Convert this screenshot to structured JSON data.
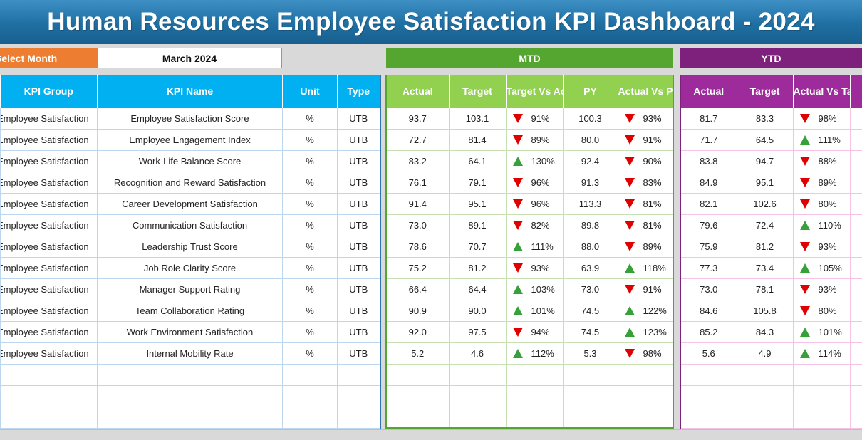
{
  "title": "Human Resources Employee Satisfaction KPI Dashboard - 2024",
  "select_month_label": "Select Month",
  "selected_month": "March 2024",
  "mtd_label": "MTD",
  "ytd_label": "YTD",
  "colors": {
    "title_bar": "#1f6fa3",
    "select_label": "#ed7d31",
    "left_header": "#00b0f0",
    "mtd_header": "#92d050",
    "mtd_band": "#55a630",
    "ytd_header": "#9e2b9c",
    "ytd_band": "#7e217d",
    "arrow_up": "#38a038",
    "arrow_down": "#e00000"
  },
  "left_headers": [
    "KPI Group",
    "KPI Name",
    "Unit",
    "Type"
  ],
  "mtd_headers": [
    "Actual",
    "Target",
    "Target Vs Actual",
    "PY",
    "Actual Vs PY"
  ],
  "ytd_headers": [
    "Actual",
    "Target",
    "Actual Vs Target"
  ],
  "rows": [
    {
      "group": "Employee Satisfaction",
      "name": "Employee Satisfaction Score",
      "unit": "%",
      "type": "UTB",
      "mtd_actual": "93.7",
      "mtd_target": "103.1",
      "mtd_tva": "91%",
      "mtd_tva_dir": "down",
      "py": "100.3",
      "avpy": "93%",
      "avpy_dir": "down",
      "ytd_actual": "81.7",
      "ytd_target": "83.3",
      "ytd_avt": "98%",
      "ytd_avt_dir": "down"
    },
    {
      "group": "Employee Satisfaction",
      "name": "Employee Engagement Index",
      "unit": "%",
      "type": "UTB",
      "mtd_actual": "72.7",
      "mtd_target": "81.4",
      "mtd_tva": "89%",
      "mtd_tva_dir": "down",
      "py": "80.0",
      "avpy": "91%",
      "avpy_dir": "down",
      "ytd_actual": "71.7",
      "ytd_target": "64.5",
      "ytd_avt": "111%",
      "ytd_avt_dir": "up"
    },
    {
      "group": "Employee Satisfaction",
      "name": "Work-Life Balance Score",
      "unit": "%",
      "type": "UTB",
      "mtd_actual": "83.2",
      "mtd_target": "64.1",
      "mtd_tva": "130%",
      "mtd_tva_dir": "up",
      "py": "92.4",
      "avpy": "90%",
      "avpy_dir": "down",
      "ytd_actual": "83.8",
      "ytd_target": "94.7",
      "ytd_avt": "88%",
      "ytd_avt_dir": "down"
    },
    {
      "group": "Employee Satisfaction",
      "name": "Recognition and Reward Satisfaction",
      "unit": "%",
      "type": "UTB",
      "mtd_actual": "76.1",
      "mtd_target": "79.1",
      "mtd_tva": "96%",
      "mtd_tva_dir": "down",
      "py": "91.3",
      "avpy": "83%",
      "avpy_dir": "down",
      "ytd_actual": "84.9",
      "ytd_target": "95.1",
      "ytd_avt": "89%",
      "ytd_avt_dir": "down"
    },
    {
      "group": "Employee Satisfaction",
      "name": "Career Development Satisfaction",
      "unit": "%",
      "type": "UTB",
      "mtd_actual": "91.4",
      "mtd_target": "95.1",
      "mtd_tva": "96%",
      "mtd_tva_dir": "down",
      "py": "113.3",
      "avpy": "81%",
      "avpy_dir": "down",
      "ytd_actual": "82.1",
      "ytd_target": "102.6",
      "ytd_avt": "80%",
      "ytd_avt_dir": "down"
    },
    {
      "group": "Employee Satisfaction",
      "name": "Communication Satisfaction",
      "unit": "%",
      "type": "UTB",
      "mtd_actual": "73.0",
      "mtd_target": "89.1",
      "mtd_tva": "82%",
      "mtd_tva_dir": "down",
      "py": "89.8",
      "avpy": "81%",
      "avpy_dir": "down",
      "ytd_actual": "79.6",
      "ytd_target": "72.4",
      "ytd_avt": "110%",
      "ytd_avt_dir": "up"
    },
    {
      "group": "Employee Satisfaction",
      "name": "Leadership Trust Score",
      "unit": "%",
      "type": "UTB",
      "mtd_actual": "78.6",
      "mtd_target": "70.7",
      "mtd_tva": "111%",
      "mtd_tva_dir": "up",
      "py": "88.0",
      "avpy": "89%",
      "avpy_dir": "down",
      "ytd_actual": "75.9",
      "ytd_target": "81.2",
      "ytd_avt": "93%",
      "ytd_avt_dir": "down"
    },
    {
      "group": "Employee Satisfaction",
      "name": "Job Role Clarity Score",
      "unit": "%",
      "type": "UTB",
      "mtd_actual": "75.2",
      "mtd_target": "81.2",
      "mtd_tva": "93%",
      "mtd_tva_dir": "down",
      "py": "63.9",
      "avpy": "118%",
      "avpy_dir": "up",
      "ytd_actual": "77.3",
      "ytd_target": "73.4",
      "ytd_avt": "105%",
      "ytd_avt_dir": "up"
    },
    {
      "group": "Employee Satisfaction",
      "name": "Manager Support Rating",
      "unit": "%",
      "type": "UTB",
      "mtd_actual": "66.4",
      "mtd_target": "64.4",
      "mtd_tva": "103%",
      "mtd_tva_dir": "up",
      "py": "73.0",
      "avpy": "91%",
      "avpy_dir": "down",
      "ytd_actual": "73.0",
      "ytd_target": "78.1",
      "ytd_avt": "93%",
      "ytd_avt_dir": "down"
    },
    {
      "group": "Employee Satisfaction",
      "name": "Team Collaboration Rating",
      "unit": "%",
      "type": "UTB",
      "mtd_actual": "90.9",
      "mtd_target": "90.0",
      "mtd_tva": "101%",
      "mtd_tva_dir": "up",
      "py": "74.5",
      "avpy": "122%",
      "avpy_dir": "up",
      "ytd_actual": "84.6",
      "ytd_target": "105.8",
      "ytd_avt": "80%",
      "ytd_avt_dir": "down"
    },
    {
      "group": "Employee Satisfaction",
      "name": "Work Environment Satisfaction",
      "unit": "%",
      "type": "UTB",
      "mtd_actual": "92.0",
      "mtd_target": "97.5",
      "mtd_tva": "94%",
      "mtd_tva_dir": "down",
      "py": "74.5",
      "avpy": "123%",
      "avpy_dir": "up",
      "ytd_actual": "85.2",
      "ytd_target": "84.3",
      "ytd_avt": "101%",
      "ytd_avt_dir": "up"
    },
    {
      "group": "Employee Satisfaction",
      "name": "Internal Mobility Rate",
      "unit": "%",
      "type": "UTB",
      "mtd_actual": "5.2",
      "mtd_target": "4.6",
      "mtd_tva": "112%",
      "mtd_tva_dir": "up",
      "py": "5.3",
      "avpy": "98%",
      "avpy_dir": "down",
      "ytd_actual": "5.6",
      "ytd_target": "4.9",
      "ytd_avt": "114%",
      "ytd_avt_dir": "up"
    }
  ],
  "empty_rows": 3
}
